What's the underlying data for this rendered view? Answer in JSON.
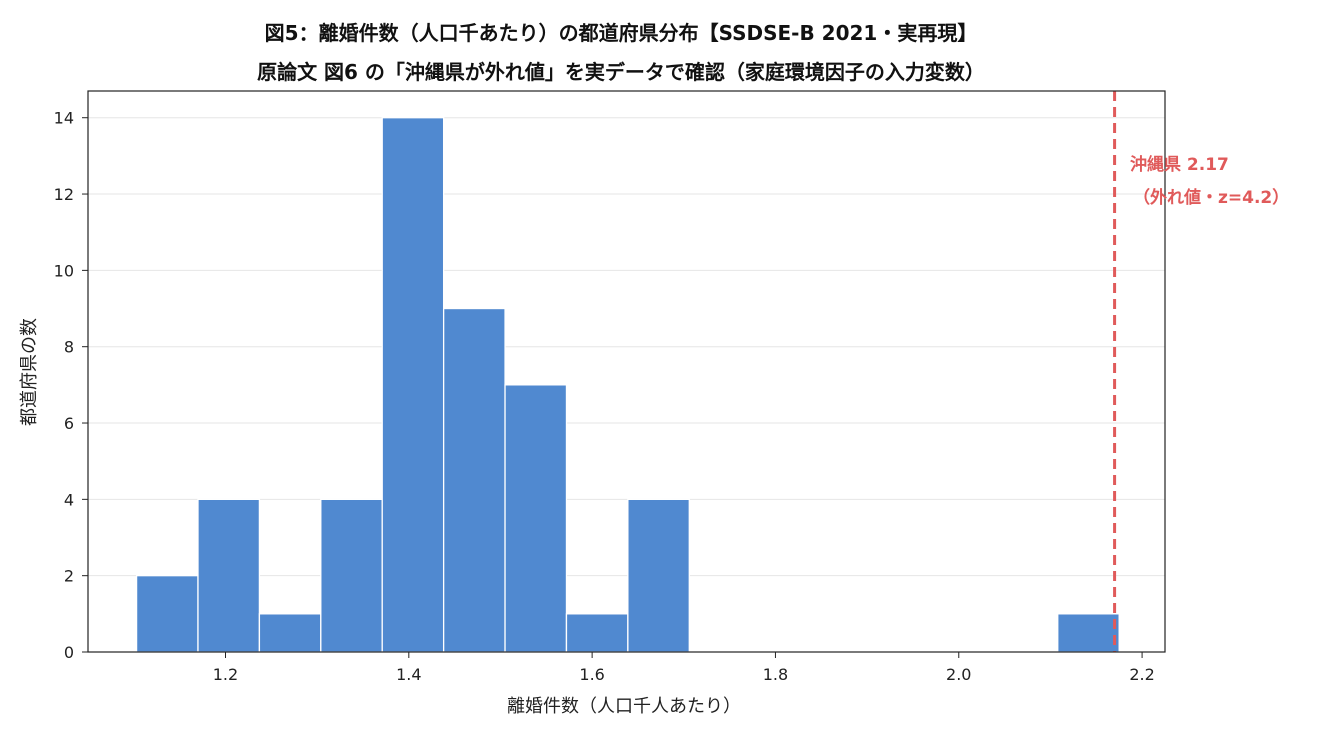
{
  "chart_data": {
    "type": "bar",
    "title": "図5：離婚件数（人口千あたり）の都道府県分布【SSDSE-B 2021・実再現】",
    "subtitle": "原論文 図6 の「沖縄県が外れ値」を実データで確認（家庭環境因子の入力変数）",
    "xlabel": "離婚件数（人口千人あたり）",
    "ylabel": "都道府県の数",
    "xlim": [
      1.05,
      2.225
    ],
    "ylim": [
      0,
      14.7
    ],
    "xticks": [
      "1.2",
      "1.4",
      "1.6",
      "1.8",
      "2.0",
      "2.2"
    ],
    "xtick_values": [
      1.2,
      1.4,
      1.6,
      1.8,
      2.0,
      2.2
    ],
    "yticks": [
      "0",
      "2",
      "4",
      "6",
      "8",
      "10",
      "12",
      "14"
    ],
    "ytick_values": [
      0,
      2,
      4,
      6,
      8,
      10,
      12,
      14
    ],
    "grid": "horizontal",
    "bin_edges": [
      1.103,
      1.17,
      1.237,
      1.304,
      1.371,
      1.438,
      1.505,
      1.572,
      1.639,
      1.706,
      1.773,
      1.84,
      1.907,
      1.974,
      2.041,
      2.108,
      2.175
    ],
    "counts": [
      2,
      4,
      1,
      4,
      14,
      9,
      7,
      1,
      4,
      0,
      0,
      0,
      0,
      0,
      0,
      1
    ],
    "bar_color": "#5089d0",
    "outlier": {
      "x": 2.17,
      "label_line1": "沖縄県 2.17",
      "label_line2": "（外れ値・z=4.2）",
      "color": "#e05a5a"
    }
  }
}
